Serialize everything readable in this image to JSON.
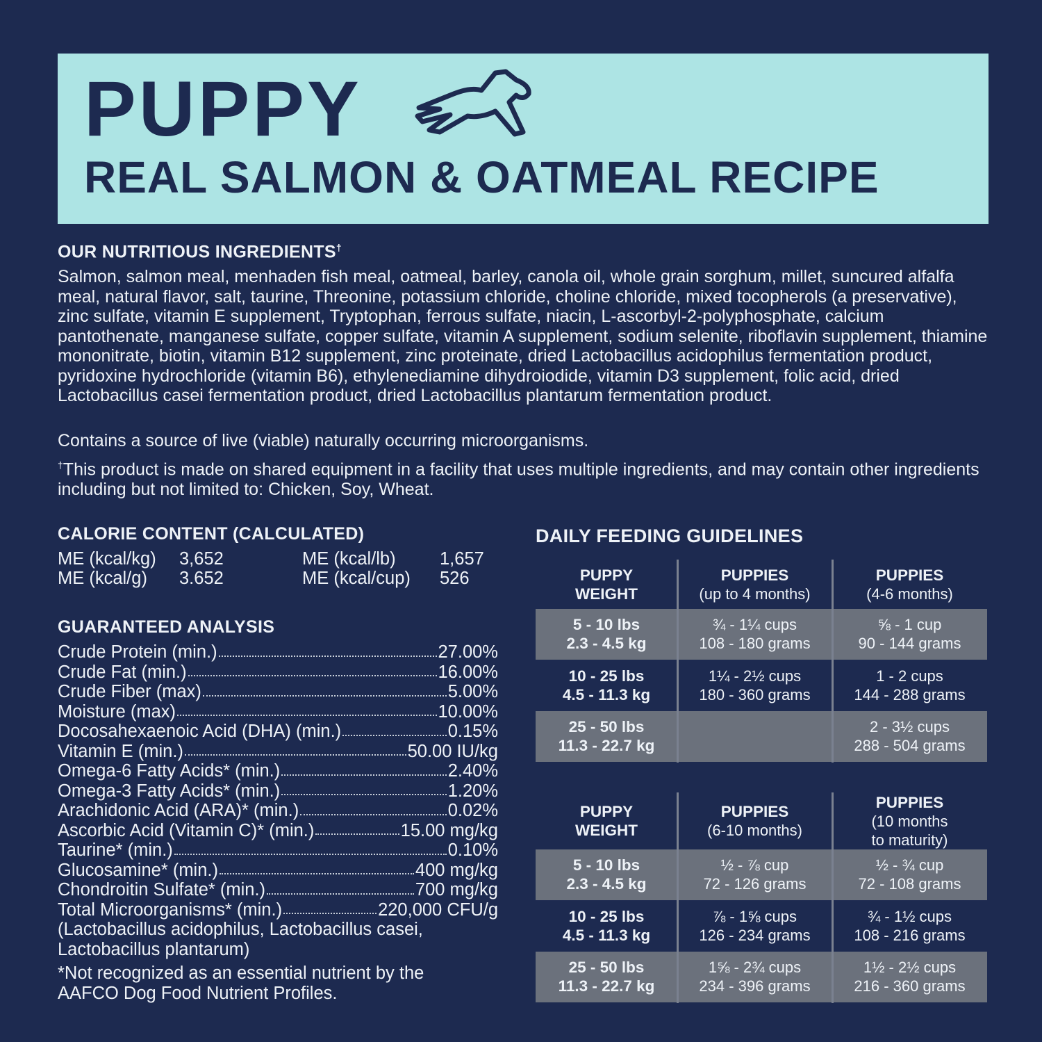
{
  "header": {
    "title": "PUPPY",
    "subtitle": "REAL SALMON & OATMEAL RECIPE"
  },
  "ingredients": {
    "heading": "OUR NUTRITIOUS INGREDIENTS",
    "heading_mark": "†",
    "text": "Salmon, salmon meal, menhaden fish meal, oatmeal, barley, canola oil, whole grain sorghum, millet, suncured alfalfa meal, natural flavor, salt, taurine, Threonine, potassium chloride, choline chloride, mixed tocopherols (a preservative), zinc sulfate, vitamin E supplement, Tryptophan, ferrous sulfate, niacin, L-ascorbyl-2-polyphosphate, calcium pantothenate, manganese sulfate, copper sulfate, vitamin A supplement, sodium selenite, riboflavin supplement, thiamine mononitrate, biotin, vitamin B12 supplement, zinc proteinate, dried Lactobacillus acidophilus fermentation product, pyridoxine hydrochloride (vitamin B6), ethylenediamine dihydroiodide, vitamin D3 supplement, folic acid, dried Lactobacillus casei fermentation product, dried Lactobacillus plantarum fermentation product.",
    "note": "Contains a source of live (viable) naturally occurring microorganisms.",
    "footnote_mark": "†",
    "footnote": "This product is made on shared equipment in a facility that uses multiple ingredients, and may contain other ingredients including but not limited to: Chicken, Soy, Wheat."
  },
  "calorie": {
    "heading": "CALORIE CONTENT (CALCULATED)",
    "items": [
      [
        "ME (kcal/kg)",
        "3,652"
      ],
      [
        "ME (kcal/lb)",
        "1,657"
      ],
      [
        "ME (kcal/g)",
        "3.652"
      ],
      [
        "ME (kcal/cup)",
        "526"
      ]
    ]
  },
  "analysis": {
    "heading": "GUARANTEED ANALYSIS",
    "rows": [
      [
        "Crude Protein (min.)",
        "27.00%"
      ],
      [
        "Crude Fat (min.)",
        "16.00%"
      ],
      [
        "Crude Fiber (max)",
        "5.00%"
      ],
      [
        "Moisture (max)",
        "10.00%"
      ],
      [
        "Docosahexaenoic Acid (DHA) (min.)",
        "0.15%"
      ],
      [
        "Vitamin E (min.)",
        "50.00 IU/kg"
      ],
      [
        "Omega-6 Fatty Acids* (min.)",
        "2.40%"
      ],
      [
        "Omega-3 Fatty Acids* (min.)",
        "1.20%"
      ],
      [
        "Arachidonic Acid (ARA)* (min.)",
        "0.02%"
      ],
      [
        "Ascorbic Acid (Vitamin C)* (min.)",
        "15.00 mg/kg"
      ],
      [
        "Taurine* (min.)",
        "0.10%"
      ],
      [
        "Glucosamine* (min.)",
        "400 mg/kg"
      ],
      [
        "Chondroitin Sulfate* (min.)",
        "700 mg/kg"
      ],
      [
        "Total Microorganisms* (min.)",
        "220,000 CFU/g"
      ]
    ],
    "continuation": [
      "(Lactobacillus acidophilus, Lactobacillus casei,",
      "Lactobacillus plantarum)"
    ],
    "footnote": [
      "*Not recognized as an essential nutrient by the",
      "AAFCO Dog Food Nutrient Profiles."
    ]
  },
  "feeding": {
    "heading": "DAILY FEEDING GUIDELINES",
    "tables": [
      {
        "headers": [
          {
            "title": [
              "PUPPY",
              "WEIGHT"
            ],
            "sub": []
          },
          {
            "title": [
              "PUPPIES"
            ],
            "sub": [
              "(up to 4 months)"
            ]
          },
          {
            "title": [
              "PUPPIES"
            ],
            "sub": [
              "(4-6 months)"
            ]
          }
        ],
        "rows": [
          [
            [
              "5 - 10 lbs",
              "2.3 - 4.5 kg"
            ],
            [
              "¾ - 1¼ cups",
              "108 - 180 grams"
            ],
            [
              "⅝ - 1 cup",
              "90 - 144 grams"
            ]
          ],
          [
            [
              "10 - 25 lbs",
              "4.5 - 11.3 kg"
            ],
            [
              "1¼ - 2½ cups",
              "180 - 360 grams"
            ],
            [
              "1 - 2 cups",
              "144 - 288 grams"
            ]
          ],
          [
            [
              "25 - 50 lbs",
              "11.3 - 22.7 kg"
            ],
            [],
            [
              "2 - 3½ cups",
              "288 - 504 grams"
            ]
          ]
        ]
      },
      {
        "headers": [
          {
            "title": [
              "PUPPY",
              "WEIGHT"
            ],
            "sub": []
          },
          {
            "title": [
              "PUPPIES"
            ],
            "sub": [
              "(6-10 months)"
            ]
          },
          {
            "title": [
              "PUPPIES"
            ],
            "sub": [
              "(10 months",
              "to maturity)"
            ]
          }
        ],
        "rows": [
          [
            [
              "5 - 10 lbs",
              "2.3 - 4.5 kg"
            ],
            [
              "½ - ⅞ cup",
              "72 - 126 grams"
            ],
            [
              "½ - ¾ cup",
              "72 - 108 grams"
            ]
          ],
          [
            [
              "10 - 25 lbs",
              "4.5 - 11.3 kg"
            ],
            [
              "⅞ - 1⅝ cups",
              "126 - 234 grams"
            ],
            [
              "¾ - 1½ cups",
              "108 - 216 grams"
            ]
          ],
          [
            [
              "25 - 50 lbs",
              "11.3 - 22.7 kg"
            ],
            [
              "1⅝ - 2¾ cups",
              "234 - 396 grams"
            ],
            [
              "1½ - 2½ cups",
              "216 - 360 grams"
            ]
          ]
        ]
      }
    ]
  }
}
